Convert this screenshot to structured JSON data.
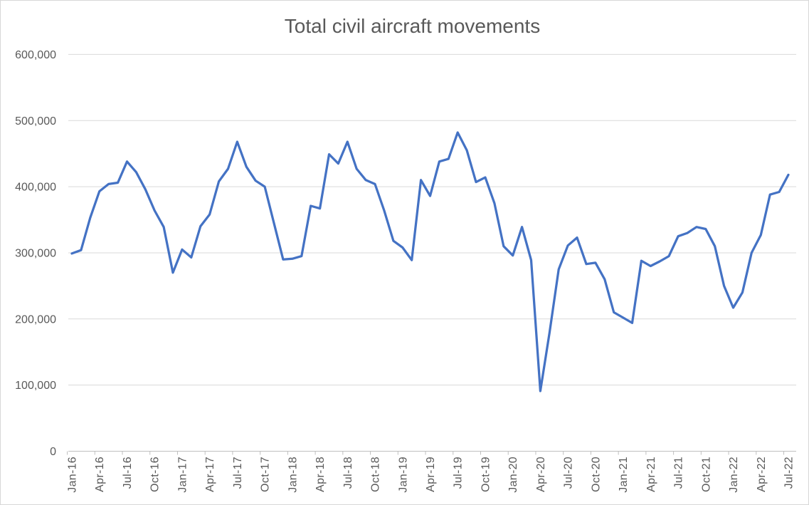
{
  "window": {
    "background_color": "#ffffff",
    "border_color": "#d7d7d7"
  },
  "chart_data": {
    "type": "line",
    "title": "Total civil aircraft movements",
    "legend": "none",
    "grid": "horizontal",
    "ylim": [
      0,
      600000
    ],
    "ytick_interval": 100000,
    "y_axis_labels_top_to_bottom": [
      "600,000",
      "500,000",
      "400,000",
      "300,000",
      "200,000",
      "100,000",
      "0"
    ],
    "x_tick_label_every": 3,
    "x_tick_labels_shown": [
      "Jan-16",
      "Apr-16",
      "Jul-16",
      "Oct-16",
      "Jan-17",
      "Apr-17",
      "Jul-17",
      "Oct-17",
      "Jan-18",
      "Apr-18",
      "Jul-18",
      "Oct-18",
      "Jan-19",
      "Apr-19",
      "Jul-19",
      "Oct-19",
      "Jan-20",
      "Apr-20",
      "Jul-20",
      "Oct-20",
      "Jan-21",
      "Apr-21",
      "Jul-21",
      "Oct-21",
      "Jan-22",
      "Apr-22",
      "Jul-22"
    ],
    "categories": [
      "Jan-16",
      "Feb-16",
      "Mar-16",
      "Apr-16",
      "May-16",
      "Jun-16",
      "Jul-16",
      "Aug-16",
      "Sep-16",
      "Oct-16",
      "Nov-16",
      "Dec-16",
      "Jan-17",
      "Feb-17",
      "Mar-17",
      "Apr-17",
      "May-17",
      "Jun-17",
      "Jul-17",
      "Aug-17",
      "Sep-17",
      "Oct-17",
      "Nov-17",
      "Dec-17",
      "Jan-18",
      "Feb-18",
      "Mar-18",
      "Apr-18",
      "May-18",
      "Jun-18",
      "Jul-18",
      "Aug-18",
      "Sep-18",
      "Oct-18",
      "Nov-18",
      "Dec-18",
      "Jan-19",
      "Feb-19",
      "Mar-19",
      "Apr-19",
      "May-19",
      "Jun-19",
      "Jul-19",
      "Aug-19",
      "Sep-19",
      "Oct-19",
      "Nov-19",
      "Dec-19",
      "Jan-20",
      "Feb-20",
      "Mar-20",
      "Apr-20",
      "May-20",
      "Jun-20",
      "Jul-20",
      "Aug-20",
      "Sep-20",
      "Oct-20",
      "Nov-20",
      "Dec-20",
      "Jan-21",
      "Feb-21",
      "Mar-21",
      "Apr-21",
      "May-21",
      "Jun-21",
      "Jul-21",
      "Aug-21",
      "Sep-21",
      "Oct-21",
      "Nov-21",
      "Dec-21",
      "Jan-22",
      "Feb-22",
      "Mar-22",
      "Apr-22",
      "May-22",
      "Jun-22",
      "Jul-22"
    ],
    "values": [
      299000,
      304000,
      353000,
      393000,
      404000,
      406000,
      438000,
      422000,
      396000,
      364000,
      339000,
      270000,
      305000,
      293000,
      340000,
      358000,
      408000,
      427000,
      468000,
      430000,
      409000,
      400000,
      345000,
      290000,
      291000,
      295000,
      371000,
      367000,
      449000,
      435000,
      468000,
      427000,
      410000,
      404000,
      364000,
      318000,
      308000,
      289000,
      410000,
      386000,
      438000,
      442000,
      482000,
      455000,
      407000,
      414000,
      375000,
      310000,
      296000,
      339000,
      289000,
      91000,
      179000,
      275000,
      311000,
      323000,
      283000,
      285000,
      260000,
      210000,
      202000,
      194000,
      288000,
      280000,
      287000,
      295000,
      325000,
      330000,
      339000,
      336000,
      310000,
      250000,
      217000,
      240000,
      300000,
      327000,
      388000,
      392000,
      418000
    ],
    "line_color": "#4472C4",
    "gridline_color": "#D9D9D9",
    "axis_line_color": "#BFBFBF",
    "tick_label_color": "#595959",
    "title_color": "#595959"
  }
}
